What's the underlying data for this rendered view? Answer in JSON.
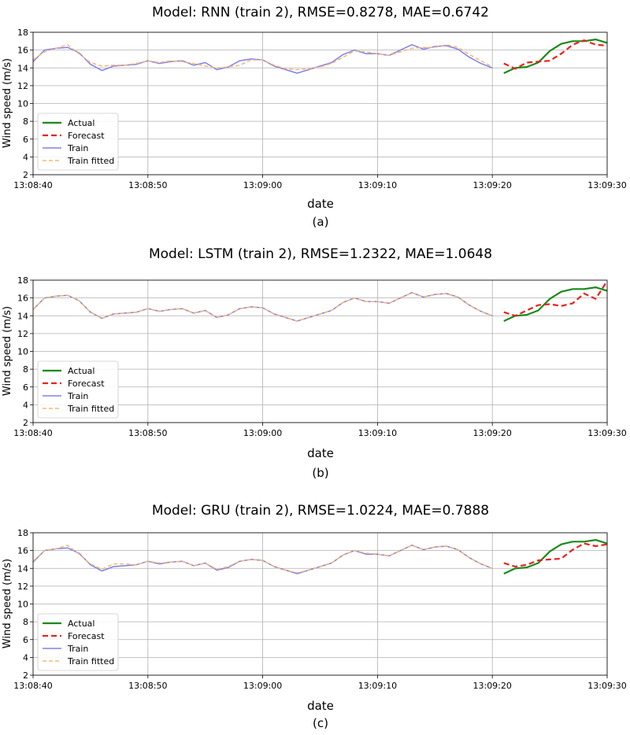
{
  "chart_data": [
    {
      "type": "line",
      "title": "Model: RNN (train 2), RMSE=0.8278, MAE=0.6742",
      "xlabel": "date",
      "ylabel": "Wind speed (m/s)",
      "caption": "(a)",
      "xlim": [
        0,
        50
      ],
      "ylim": [
        2,
        18
      ],
      "x_ticks": [
        {
          "x": 0,
          "label": "13:08:40"
        },
        {
          "x": 10,
          "label": "13:08:50"
        },
        {
          "x": 20,
          "label": "13:09:00"
        },
        {
          "x": 30,
          "label": "13:09:10"
        },
        {
          "x": 40,
          "label": "13:09:20"
        },
        {
          "x": 50,
          "label": "13:09:30"
        }
      ],
      "y_ticks": [
        2,
        4,
        6,
        8,
        10,
        12,
        14,
        16,
        18
      ],
      "grid": true,
      "legend_position": "lower-left",
      "series": [
        {
          "name": "Actual",
          "color": "#1a8a1a",
          "style": "solid",
          "x": [
            41,
            42,
            43,
            44,
            45,
            46,
            47,
            48,
            49,
            50
          ],
          "y": [
            13.4,
            14.0,
            14.1,
            14.6,
            15.9,
            16.7,
            17.0,
            17.0,
            17.2,
            16.8
          ]
        },
        {
          "name": "Forecast",
          "color": "#e8231d",
          "style": "dashed",
          "x": [
            41,
            42,
            43,
            44,
            45,
            46,
            47,
            48,
            49,
            50
          ],
          "y": [
            14.5,
            13.9,
            14.6,
            14.7,
            14.8,
            15.6,
            16.6,
            17.1,
            16.6,
            16.5
          ]
        },
        {
          "name": "Train",
          "color": "#8080ee",
          "style": "solid",
          "x": [
            0,
            1,
            2,
            3,
            4,
            5,
            6,
            7,
            8,
            9,
            10,
            11,
            12,
            13,
            14,
            15,
            16,
            17,
            18,
            19,
            20,
            21,
            22,
            23,
            24,
            25,
            26,
            27,
            28,
            29,
            30,
            31,
            32,
            33,
            34,
            35,
            36,
            37,
            38,
            39,
            40
          ],
          "y": [
            14.7,
            16.0,
            16.2,
            16.3,
            15.7,
            14.4,
            13.7,
            14.2,
            14.3,
            14.4,
            14.8,
            14.5,
            14.7,
            14.8,
            14.3,
            14.6,
            13.8,
            14.1,
            14.8,
            15.0,
            14.9,
            14.2,
            13.8,
            13.4,
            13.8,
            14.2,
            14.6,
            15.5,
            16.0,
            15.6,
            15.6,
            15.4,
            16.0,
            16.6,
            16.1,
            16.4,
            16.5,
            16.1,
            15.2,
            14.5,
            14.0
          ]
        },
        {
          "name": "Train fitted",
          "color": "#f5b870",
          "style": "dashed",
          "x": [
            0,
            1,
            2,
            3,
            4,
            5,
            6,
            7,
            8,
            9,
            10,
            11,
            12,
            13,
            14,
            15,
            16,
            17,
            18,
            19,
            20,
            21,
            22,
            23,
            24,
            25,
            26,
            27,
            28,
            29,
            30,
            31,
            32,
            33,
            34,
            35,
            36,
            37,
            38,
            39,
            40
          ],
          "y": [
            14.9,
            15.8,
            16.2,
            16.6,
            15.6,
            14.6,
            14.2,
            14.3,
            14.3,
            14.5,
            14.8,
            14.6,
            14.8,
            14.7,
            14.5,
            14.2,
            14.0,
            14.1,
            14.3,
            14.9,
            14.9,
            14.3,
            13.9,
            13.8,
            13.9,
            14.1,
            14.5,
            15.2,
            15.9,
            15.8,
            15.6,
            15.4,
            15.8,
            16.2,
            16.3,
            16.3,
            16.6,
            16.3,
            15.5,
            14.8,
            14.1
          ]
        }
      ]
    },
    {
      "type": "line",
      "title": "Model: LSTM (train 2), RMSE=1.2322, MAE=1.0648",
      "xlabel": "date",
      "ylabel": "Wind speed (m/s)",
      "caption": "(b)",
      "xlim": [
        0,
        50
      ],
      "ylim": [
        2,
        18
      ],
      "x_ticks": [
        {
          "x": 0,
          "label": "13:08:40"
        },
        {
          "x": 10,
          "label": "13:08:50"
        },
        {
          "x": 20,
          "label": "13:09:00"
        },
        {
          "x": 30,
          "label": "13:09:10"
        },
        {
          "x": 40,
          "label": "13:09:20"
        },
        {
          "x": 50,
          "label": "13:09:30"
        }
      ],
      "y_ticks": [
        2,
        4,
        6,
        8,
        10,
        12,
        14,
        16,
        18
      ],
      "grid": true,
      "legend_position": "lower-left",
      "series": [
        {
          "name": "Actual",
          "color": "#1a8a1a",
          "style": "solid",
          "x": [
            41,
            42,
            43,
            44,
            45,
            46,
            47,
            48,
            49,
            50
          ],
          "y": [
            13.4,
            14.0,
            14.1,
            14.6,
            15.9,
            16.7,
            17.0,
            17.0,
            17.2,
            16.8
          ]
        },
        {
          "name": "Forecast",
          "color": "#e8231d",
          "style": "dashed",
          "x": [
            41,
            42,
            43,
            44,
            45,
            46,
            47,
            48,
            49,
            50
          ],
          "y": [
            14.4,
            14.0,
            14.6,
            15.2,
            15.3,
            15.1,
            15.4,
            16.5,
            15.9,
            17.9
          ]
        },
        {
          "name": "Train",
          "color": "#8080ee",
          "style": "solid",
          "x": [
            0,
            1,
            2,
            3,
            4,
            5,
            6,
            7,
            8,
            9,
            10,
            11,
            12,
            13,
            14,
            15,
            16,
            17,
            18,
            19,
            20,
            21,
            22,
            23,
            24,
            25,
            26,
            27,
            28,
            29,
            30,
            31,
            32,
            33,
            34,
            35,
            36,
            37,
            38,
            39,
            40
          ],
          "y": [
            14.7,
            16.0,
            16.2,
            16.3,
            15.7,
            14.4,
            13.7,
            14.2,
            14.3,
            14.4,
            14.8,
            14.5,
            14.7,
            14.8,
            14.3,
            14.6,
            13.8,
            14.1,
            14.8,
            15.0,
            14.9,
            14.2,
            13.8,
            13.4,
            13.8,
            14.2,
            14.6,
            15.5,
            16.0,
            15.6,
            15.6,
            15.4,
            16.0,
            16.6,
            16.1,
            16.4,
            16.5,
            16.1,
            15.2,
            14.5,
            14.0
          ]
        },
        {
          "name": "Train fitted",
          "color": "#f5b870",
          "style": "dashed",
          "x": [
            0,
            1,
            2,
            3,
            4,
            5,
            6,
            7,
            8,
            9,
            10,
            11,
            12,
            13,
            14,
            15,
            16,
            17,
            18,
            19,
            20,
            21,
            22,
            23,
            24,
            25,
            26,
            27,
            28,
            29,
            30,
            31,
            32,
            33,
            34,
            35,
            36,
            37,
            38,
            39,
            40
          ],
          "y": [
            14.7,
            16.0,
            16.2,
            16.3,
            15.7,
            14.4,
            13.7,
            14.2,
            14.3,
            14.4,
            14.8,
            14.5,
            14.7,
            14.8,
            14.3,
            14.6,
            13.8,
            14.1,
            14.8,
            15.0,
            14.9,
            14.2,
            13.8,
            13.4,
            13.8,
            14.2,
            14.6,
            15.5,
            16.0,
            15.6,
            15.6,
            15.4,
            16.0,
            16.6,
            16.1,
            16.4,
            16.5,
            16.1,
            15.2,
            14.5,
            14.0
          ]
        }
      ]
    },
    {
      "type": "line",
      "title": "Model: GRU (train 2), RMSE=1.0224, MAE=0.7888",
      "xlabel": "date",
      "ylabel": "Wind speed (m/s)",
      "caption": "(c)",
      "xlim": [
        0,
        50
      ],
      "ylim": [
        2,
        18
      ],
      "x_ticks": [
        {
          "x": 0,
          "label": "13:08:40"
        },
        {
          "x": 10,
          "label": "13:08:50"
        },
        {
          "x": 20,
          "label": "13:09:00"
        },
        {
          "x": 30,
          "label": "13:09:10"
        },
        {
          "x": 40,
          "label": "13:09:20"
        },
        {
          "x": 50,
          "label": "13:09:30"
        }
      ],
      "y_ticks": [
        2,
        4,
        6,
        8,
        10,
        12,
        14,
        16,
        18
      ],
      "grid": true,
      "legend_position": "lower-left",
      "series": [
        {
          "name": "Actual",
          "color": "#1a8a1a",
          "style": "solid",
          "x": [
            41,
            42,
            43,
            44,
            45,
            46,
            47,
            48,
            49,
            50
          ],
          "y": [
            13.4,
            14.0,
            14.1,
            14.6,
            15.9,
            16.7,
            17.0,
            17.0,
            17.2,
            16.8
          ]
        },
        {
          "name": "Forecast",
          "color": "#e8231d",
          "style": "dashed",
          "x": [
            41,
            42,
            43,
            44,
            45,
            46,
            47,
            48,
            49,
            50
          ],
          "y": [
            14.6,
            14.2,
            14.4,
            14.9,
            15.0,
            15.1,
            16.1,
            16.8,
            16.5,
            16.7
          ]
        },
        {
          "name": "Train",
          "color": "#8080ee",
          "style": "solid",
          "x": [
            0,
            1,
            2,
            3,
            4,
            5,
            6,
            7,
            8,
            9,
            10,
            11,
            12,
            13,
            14,
            15,
            16,
            17,
            18,
            19,
            20,
            21,
            22,
            23,
            24,
            25,
            26,
            27,
            28,
            29,
            30,
            31,
            32,
            33,
            34,
            35,
            36,
            37,
            38,
            39,
            40
          ],
          "y": [
            14.7,
            16.0,
            16.2,
            16.3,
            15.7,
            14.4,
            13.7,
            14.2,
            14.3,
            14.4,
            14.8,
            14.5,
            14.7,
            14.8,
            14.3,
            14.6,
            13.8,
            14.1,
            14.8,
            15.0,
            14.9,
            14.2,
            13.8,
            13.4,
            13.8,
            14.2,
            14.6,
            15.5,
            16.0,
            15.6,
            15.6,
            15.4,
            16.0,
            16.6,
            16.1,
            16.4,
            16.5,
            16.1,
            15.2,
            14.5,
            14.0
          ]
        },
        {
          "name": "Train fitted",
          "color": "#f5b870",
          "style": "dashed",
          "x": [
            0,
            1,
            2,
            3,
            4,
            5,
            6,
            7,
            8,
            9,
            10,
            11,
            12,
            13,
            14,
            15,
            16,
            17,
            18,
            19,
            20,
            21,
            22,
            23,
            24,
            25,
            26,
            27,
            28,
            29,
            30,
            31,
            32,
            33,
            34,
            35,
            36,
            37,
            38,
            39,
            40
          ],
          "y": [
            14.8,
            16.0,
            16.2,
            16.6,
            15.6,
            14.5,
            13.9,
            14.5,
            14.5,
            14.4,
            14.8,
            14.6,
            14.7,
            14.8,
            14.3,
            14.6,
            13.9,
            14.2,
            14.8,
            15.0,
            14.9,
            14.2,
            13.8,
            13.5,
            13.8,
            14.2,
            14.6,
            15.5,
            16.0,
            15.7,
            15.6,
            15.4,
            16.0,
            16.6,
            16.1,
            16.4,
            16.5,
            16.1,
            15.2,
            14.5,
            14.0
          ]
        }
      ]
    }
  ]
}
